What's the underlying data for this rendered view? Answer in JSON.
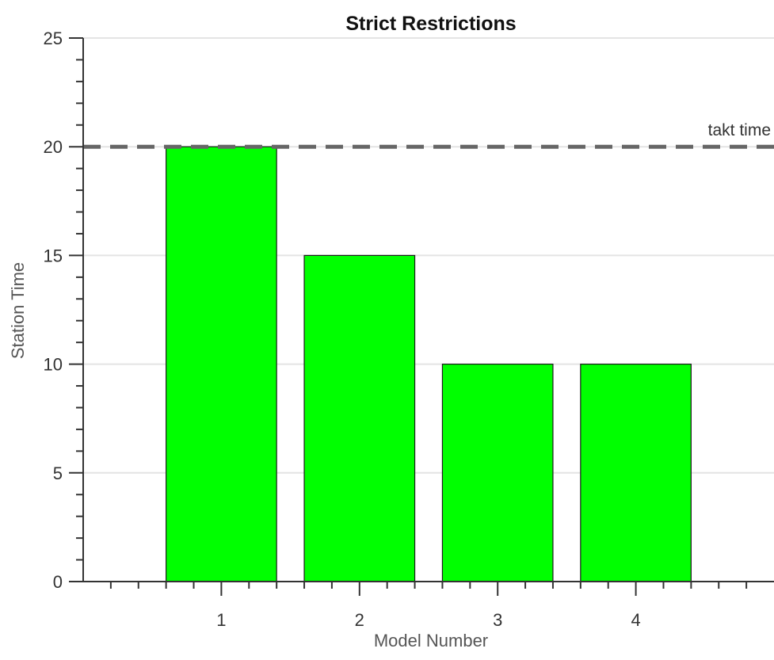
{
  "chart_data": {
    "type": "bar",
    "title": "Strict Restrictions",
    "xlabel": "Model Number",
    "ylabel": "Station Time",
    "categories": [
      "1",
      "2",
      "3",
      "4"
    ],
    "values": [
      20,
      15,
      10,
      10
    ],
    "xlim": [
      0,
      5
    ],
    "ylim": [
      0,
      25
    ],
    "yticks": [
      0,
      5,
      10,
      15,
      20,
      25
    ],
    "ytick_labels": [
      "0",
      "5",
      "10",
      "15",
      "20",
      "25"
    ],
    "grid": "horizontal",
    "legend": "none",
    "bar_color": "#00ff00",
    "reference_line": {
      "value": 20,
      "label": "takt time",
      "color": "#666666",
      "style": "dashed"
    }
  }
}
